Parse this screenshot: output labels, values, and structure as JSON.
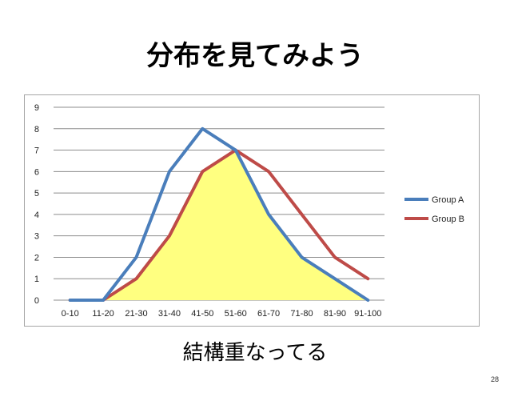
{
  "slide": {
    "title": "分布を見てみよう",
    "subtitle": "結構重なってる",
    "page_number": "28"
  },
  "chart_data": {
    "type": "line",
    "categories": [
      "0-10",
      "11-20",
      "21-30",
      "31-40",
      "41-50",
      "51-60",
      "61-70",
      "71-80",
      "81-90",
      "91-100"
    ],
    "series": [
      {
        "name": "Group A",
        "color": "#4a7ebb",
        "values": [
          0,
          0,
          2,
          6,
          8,
          7,
          4,
          2,
          1,
          0
        ]
      },
      {
        "name": "Group B",
        "color": "#be4b48",
        "values": [
          0,
          0,
          1,
          3,
          6,
          7,
          6,
          4,
          2,
          1
        ]
      }
    ],
    "overlap_fill_color": "#ffff80",
    "yticks": [
      0,
      1,
      2,
      3,
      4,
      5,
      6,
      7,
      8,
      9
    ],
    "ylim": [
      0,
      9
    ],
    "grid": true,
    "legend_position": "right"
  }
}
